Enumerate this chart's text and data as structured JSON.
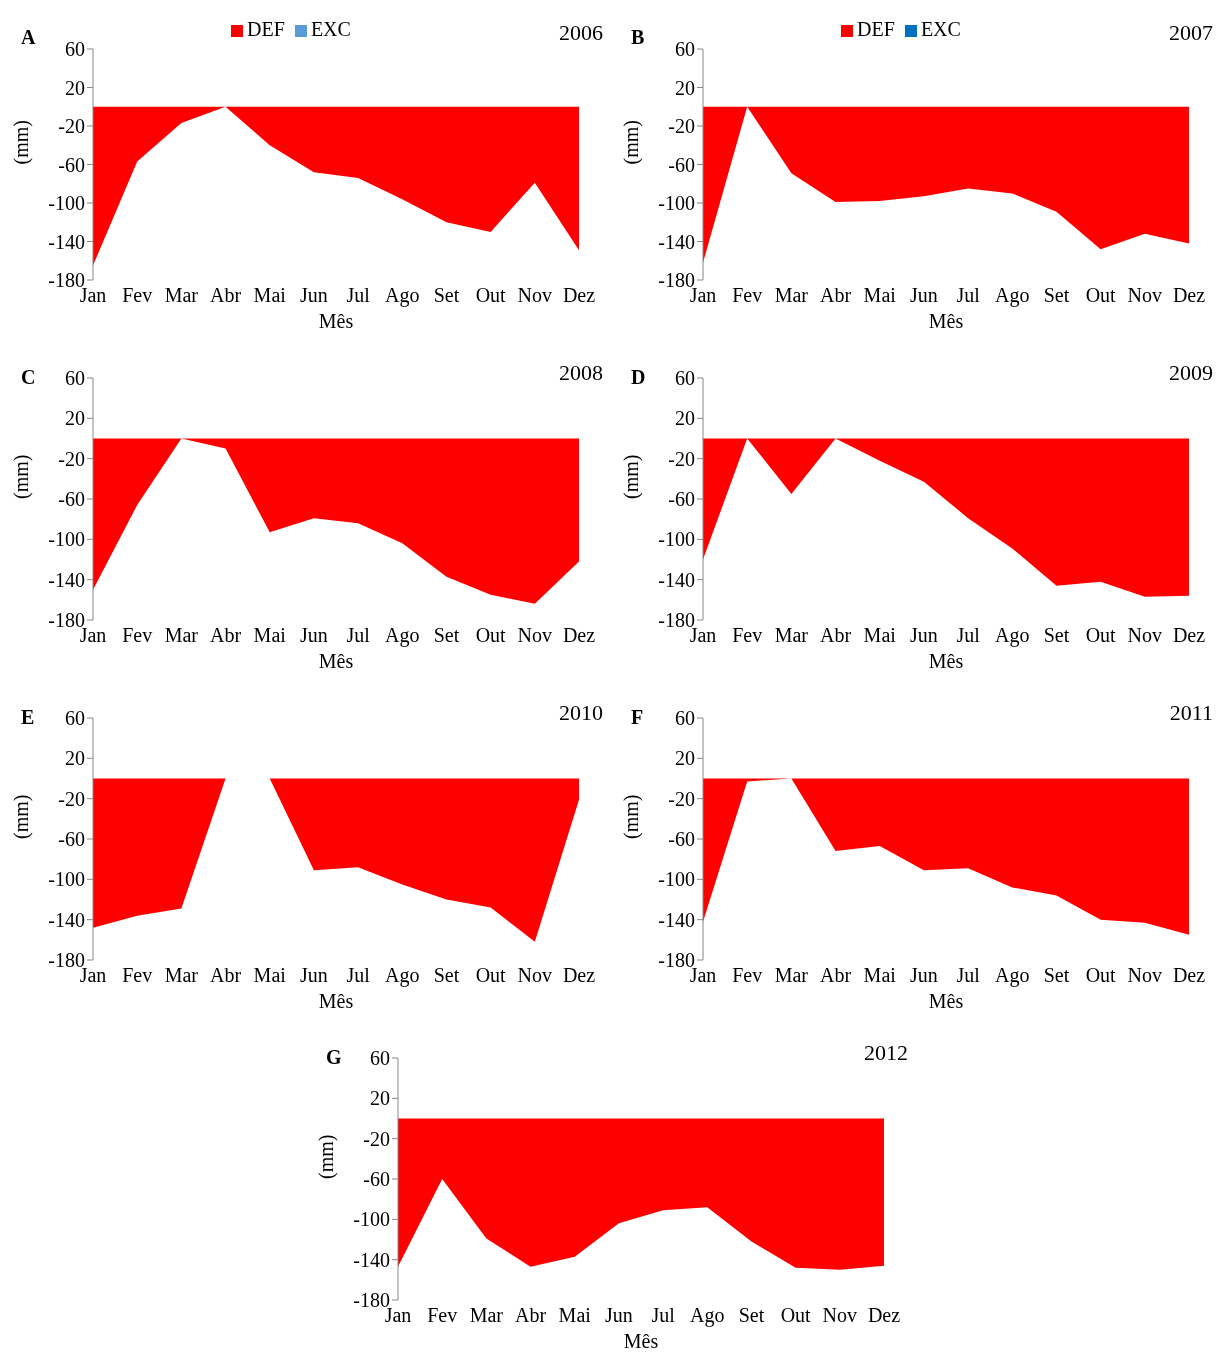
{
  "chart_data": [
    {
      "type": "area",
      "title": "2006",
      "annotations": [
        "A"
      ],
      "xlabel": "Mês",
      "ylabel": "(mm)",
      "categories": [
        "Jan",
        "Fev",
        "Mar",
        "Abr",
        "Mai",
        "Jun",
        "Jul",
        "Ago",
        "Set",
        "Out",
        "Nov",
        "Dez"
      ],
      "ylim": [
        -180,
        60
      ],
      "yticks": [
        -180,
        -140,
        -100,
        -60,
        -20,
        20,
        60
      ],
      "grid": false,
      "legend": "top",
      "marker": "none",
      "series": [
        {
          "name": "DEF",
          "color": "#ff0000",
          "values": [
            -165,
            -57,
            -17,
            0,
            -40,
            -68,
            -74,
            -96,
            -120,
            -130,
            -79,
            -149
          ]
        },
        {
          "name": "EXC",
          "color": "#5b9bd5",
          "values": [
            null,
            null,
            null,
            null,
            null,
            null,
            null,
            null,
            null,
            null,
            null,
            null
          ]
        }
      ]
    },
    {
      "type": "area",
      "title": "2007",
      "annotations": [
        "B"
      ],
      "xlabel": "Mês",
      "ylabel": "(mm)",
      "categories": [
        "Jan",
        "Fev",
        "Mar",
        "Abr",
        "Mai",
        "Jun",
        "Jul",
        "Ago",
        "Set",
        "Out",
        "Nov",
        "Dez"
      ],
      "ylim": [
        -180,
        60
      ],
      "yticks": [
        -180,
        -140,
        -100,
        -60,
        -20,
        20,
        60
      ],
      "grid": false,
      "legend": "top",
      "marker": "none",
      "series": [
        {
          "name": "DEF",
          "color": "#ff0000",
          "values": [
            -162,
            0,
            -69,
            -99,
            -98,
            -93,
            -85,
            -90,
            -109,
            -148,
            -132,
            -142
          ]
        },
        {
          "name": "EXC",
          "color": "#0070c0",
          "values": [
            null,
            null,
            null,
            null,
            null,
            null,
            null,
            null,
            null,
            null,
            null,
            null
          ]
        }
      ]
    },
    {
      "type": "area",
      "title": "2008",
      "annotations": [
        "C"
      ],
      "xlabel": "Mês",
      "ylabel": "(mm)",
      "categories": [
        "Jan",
        "Fev",
        "Mar",
        "Abr",
        "Mai",
        "Jun",
        "Jul",
        "Ago",
        "Set",
        "Out",
        "Nov",
        "Dez"
      ],
      "ylim": [
        -180,
        60
      ],
      "yticks": [
        -180,
        -140,
        -100,
        -60,
        -20,
        20,
        60
      ],
      "grid": false,
      "legend": false,
      "marker": "none",
      "series": [
        {
          "color": "#ff0000",
          "values": [
            -150,
            -66,
            0,
            -10,
            -93,
            -79,
            -84,
            -104,
            -137,
            -155,
            -164,
            -122
          ]
        }
      ]
    },
    {
      "type": "area",
      "title": "2009",
      "annotations": [
        "D"
      ],
      "xlabel": "Mês",
      "ylabel": "(mm)",
      "categories": [
        "Jan",
        "Fev",
        "Mar",
        "Abr",
        "Mai",
        "Jun",
        "Jul",
        "Ago",
        "Set",
        "Out",
        "Nov",
        "Dez"
      ],
      "ylim": [
        -180,
        60
      ],
      "yticks": [
        -180,
        -140,
        -100,
        -60,
        -20,
        20,
        60
      ],
      "grid": false,
      "legend": false,
      "marker": "none",
      "series": [
        {
          "color": "#ff0000",
          "values": [
            -120,
            0,
            -55,
            0,
            -22,
            -43,
            -79,
            -109,
            -146,
            -142,
            -157,
            -156
          ]
        }
      ]
    },
    {
      "type": "area",
      "title": "2010",
      "annotations": [
        "E"
      ],
      "xlabel": "Mês",
      "ylabel": "(mm)",
      "categories": [
        "Jan",
        "Fev",
        "Mar",
        "Abr",
        "Mai",
        "Jun",
        "Jul",
        "Ago",
        "Set",
        "Out",
        "Nov",
        "Dez"
      ],
      "ylim": [
        -180,
        60
      ],
      "yticks": [
        -180,
        -140,
        -100,
        -60,
        -20,
        20,
        60
      ],
      "grid": false,
      "legend": false,
      "marker": "none",
      "series": [
        {
          "color": "#ff0000",
          "values": [
            -148,
            -136,
            -129,
            0,
            0,
            -91,
            -88,
            -105,
            -120,
            -128,
            -162,
            -21
          ]
        }
      ]
    },
    {
      "type": "area",
      "title": "2011",
      "annotations": [
        "F"
      ],
      "xlabel": "Mês",
      "ylabel": "(mm)",
      "categories": [
        "Jan",
        "Fev",
        "Mar",
        "Abr",
        "Mai",
        "Jun",
        "Jul",
        "Ago",
        "Set",
        "Out",
        "Nov",
        "Dez"
      ],
      "ylim": [
        -180,
        60
      ],
      "yticks": [
        -180,
        -140,
        -100,
        -60,
        -20,
        20,
        60
      ],
      "grid": false,
      "legend": false,
      "marker": "none",
      "series": [
        {
          "color": "#ff0000",
          "values": [
            -142,
            -3,
            0,
            -72,
            -67,
            -91,
            -89,
            -108,
            -116,
            -140,
            -143,
            -155
          ]
        }
      ]
    },
    {
      "type": "area",
      "title": "2012",
      "annotations": [
        "G"
      ],
      "xlabel": "Mês",
      "ylabel": "(mm)",
      "categories": [
        "Jan",
        "Fev",
        "Mar",
        "Abr",
        "Mai",
        "Jun",
        "Jul",
        "Ago",
        "Set",
        "Out",
        "Nov",
        "Dez"
      ],
      "ylim": [
        -180,
        60
      ],
      "yticks": [
        -180,
        -140,
        -100,
        -60,
        -20,
        20,
        60
      ],
      "grid": false,
      "legend": false,
      "marker": "none",
      "series": [
        {
          "color": "#ff0000",
          "values": [
            -147,
            -60,
            -119,
            -147,
            -137,
            -104,
            -91,
            -88,
            -122,
            -148,
            -150,
            -146
          ]
        }
      ]
    }
  ]
}
